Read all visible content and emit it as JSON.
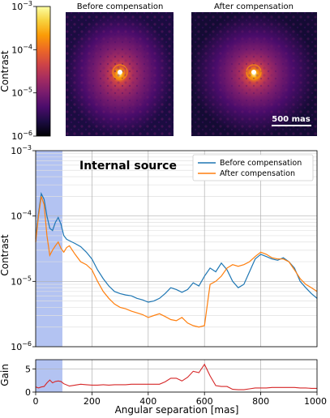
{
  "top_panel": {
    "colorbar": {
      "label": "Contrast",
      "ticks": [
        "10^-3",
        "10^-4",
        "10^-5",
        "10^-6"
      ],
      "tick_bases": [
        "10",
        "10",
        "10",
        "10"
      ],
      "tick_exps": [
        "−3",
        "−4",
        "−5",
        "−6"
      ],
      "colormap": [
        "#000004",
        "#1b0c41",
        "#4a0c6b",
        "#781c6d",
        "#a52c60",
        "#cf4446",
        "#ed6925",
        "#fb9b06",
        "#f7d13d",
        "#fcffa4"
      ]
    },
    "images": [
      {
        "title": "Before compensation"
      },
      {
        "title": "After compensation",
        "scale_bar_label": "500 mas"
      }
    ]
  },
  "chart_data": [
    {
      "type": "line",
      "title": "Internal source",
      "xlabel": "",
      "ylabel": "Contrast",
      "xlim": [
        0,
        1000
      ],
      "ylim": [
        1e-06,
        0.001
      ],
      "yscale": "log",
      "grid": true,
      "legend_position": "top-right",
      "shaded_region": {
        "x": [
          0,
          95
        ],
        "color": "#a6b8f0"
      },
      "y_ticks": [
        "10^-6",
        "10^-5",
        "10^-4",
        "10^-3"
      ],
      "y_tick_bases": [
        "10",
        "10",
        "10",
        "10"
      ],
      "y_tick_exps": [
        "−6",
        "−5",
        "−4",
        "−3"
      ],
      "series": [
        {
          "name": "Before compensation",
          "color": "#1f77b4",
          "x": [
            0,
            10,
            20,
            30,
            40,
            50,
            60,
            70,
            80,
            90,
            100,
            110,
            120,
            140,
            160,
            180,
            200,
            220,
            240,
            260,
            280,
            300,
            320,
            340,
            360,
            380,
            400,
            420,
            440,
            460,
            480,
            500,
            520,
            540,
            560,
            580,
            600,
            620,
            640,
            660,
            680,
            700,
            720,
            740,
            760,
            780,
            800,
            820,
            840,
            860,
            880,
            900,
            920,
            940,
            960,
            980,
            1000
          ],
          "y": [
            4.5e-05,
            0.00011,
            0.00022,
            0.00018,
            0.0001,
            6.5e-05,
            6e-05,
            8e-05,
            9.5e-05,
            7.5e-05,
            5e-05,
            4.4e-05,
            4.2e-05,
            3.8e-05,
            3.4e-05,
            2.8e-05,
            2.2e-05,
            1.5e-05,
            1.1e-05,
            8.5e-06,
            7e-06,
            6.5e-06,
            6.2e-06,
            6e-06,
            5.5e-06,
            5.2e-06,
            4.8e-06,
            5e-06,
            5.5e-06,
            6.5e-06,
            8e-06,
            7.5e-06,
            6.8e-06,
            7.5e-06,
            9.5e-06,
            8.5e-06,
            1.2e-05,
            1.6e-05,
            1.4e-05,
            1.9e-05,
            1.5e-05,
            1e-05,
            8e-06,
            9e-06,
            1.4e-05,
            2.2e-05,
            2.6e-05,
            2.4e-05,
            2.2e-05,
            2.1e-05,
            2.3e-05,
            2e-05,
            1.6e-05,
            1e-05,
            8e-06,
            6.5e-06,
            5.5e-06
          ]
        },
        {
          "name": "After compensation",
          "color": "#ff7f0e",
          "x": [
            0,
            10,
            20,
            30,
            40,
            50,
            60,
            70,
            80,
            90,
            100,
            110,
            120,
            140,
            160,
            180,
            200,
            220,
            240,
            260,
            280,
            300,
            320,
            340,
            360,
            380,
            400,
            420,
            440,
            460,
            480,
            500,
            520,
            540,
            560,
            580,
            600,
            620,
            640,
            660,
            680,
            700,
            720,
            740,
            760,
            780,
            800,
            820,
            840,
            860,
            880,
            900,
            920,
            940,
            960,
            980,
            1000
          ],
          "y": [
            4e-05,
            0.0001,
            0.0002,
            0.00015,
            5e-05,
            2.5e-05,
            3e-05,
            3.5e-05,
            4e-05,
            3.2e-05,
            2.8e-05,
            3.3e-05,
            3.5e-05,
            2.6e-05,
            2e-05,
            1.8e-05,
            1.5e-05,
            1e-05,
            7e-06,
            5.5e-06,
            4.5e-06,
            4e-06,
            3.8e-06,
            3.5e-06,
            3.3e-06,
            3.1e-06,
            2.8e-06,
            3e-06,
            3.2e-06,
            2.9e-06,
            2.6e-06,
            2.5e-06,
            2.8e-06,
            2.3e-06,
            2.1e-06,
            2e-06,
            2.1e-06,
            9e-06,
            1e-05,
            1.2e-05,
            1.6e-05,
            1.8e-05,
            1.7e-05,
            1.8e-05,
            2e-05,
            2.4e-05,
            2.8e-05,
            2.6e-05,
            2.3e-05,
            2.2e-05,
            2.2e-05,
            2e-05,
            1.5e-05,
            1.1e-05,
            9e-06,
            8e-06,
            7e-06
          ]
        }
      ]
    },
    {
      "type": "line",
      "title": "",
      "xlabel": "Angular separation [mas]",
      "ylabel": "Gain",
      "xlim": [
        0,
        1000
      ],
      "ylim": [
        0,
        7
      ],
      "grid": true,
      "shaded_region": {
        "x": [
          0,
          95
        ],
        "color": "#a6b8f0"
      },
      "x_ticks": [
        0,
        200,
        400,
        600,
        800,
        1000
      ],
      "y_ticks": [
        0,
        5
      ],
      "series": [
        {
          "color": "#d62728",
          "x": [
            0,
            10,
            20,
            30,
            40,
            50,
            60,
            70,
            80,
            90,
            100,
            120,
            140,
            160,
            180,
            200,
            220,
            240,
            260,
            280,
            300,
            320,
            340,
            360,
            380,
            400,
            420,
            440,
            460,
            480,
            500,
            520,
            540,
            560,
            580,
            600,
            620,
            640,
            660,
            680,
            700,
            720,
            740,
            760,
            780,
            800,
            820,
            840,
            860,
            880,
            900,
            920,
            940,
            960,
            980,
            1000
          ],
          "y": [
            1.1,
            0.9,
            1.1,
            1.2,
            2.0,
            2.6,
            2.0,
            2.3,
            2.4,
            2.3,
            1.8,
            1.3,
            1.5,
            1.7,
            1.6,
            1.5,
            1.5,
            1.6,
            1.5,
            1.6,
            1.6,
            1.6,
            1.7,
            1.7,
            1.7,
            1.7,
            1.7,
            1.7,
            2.2,
            3.0,
            3.0,
            2.4,
            3.2,
            4.5,
            4.2,
            6.0,
            3.5,
            1.4,
            1.2,
            1.2,
            0.6,
            0.5,
            0.5,
            0.7,
            0.9,
            0.9,
            0.9,
            1.0,
            1.0,
            1.0,
            1.0,
            1.0,
            0.9,
            0.9,
            0.8,
            0.8
          ]
        }
      ]
    }
  ]
}
